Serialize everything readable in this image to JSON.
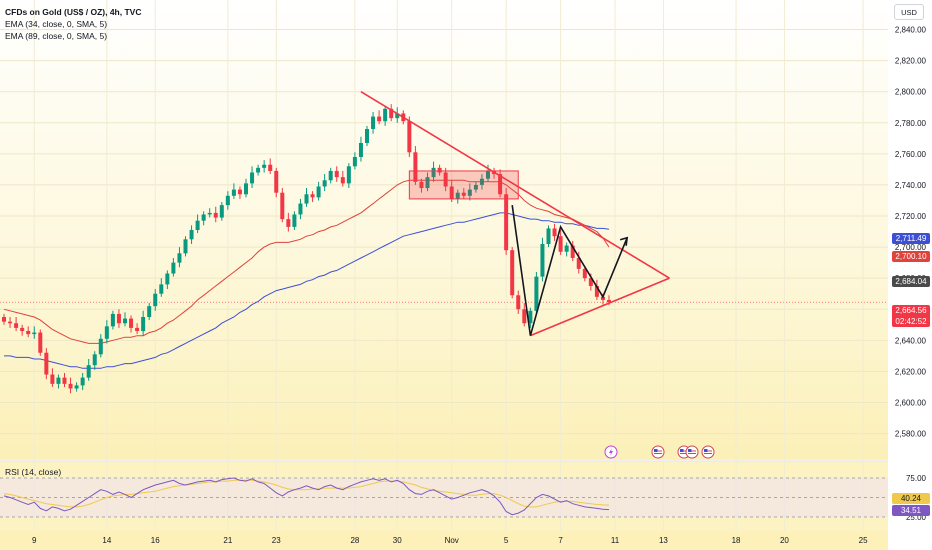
{
  "legend": {
    "title": "CFDs on Gold (US$ / OZ), 4h, TVC",
    "ema1": "EMA (34, close, 0, SMA, 5)",
    "ema2": "EMA (89, close, 0, SMA, 5)",
    "rsi": "RSI (14, close)"
  },
  "currency_button": "USD",
  "badges": {
    "ema89": "2,711.49",
    "ema34": "2,700.10",
    "level": "2,684.04",
    "last_price": "2,664.56",
    "countdown": "02:42:52",
    "rsi_ma": "40.24",
    "rsi": "34.51"
  },
  "colors": {
    "up": "#089981",
    "down": "#f23645",
    "ema34": "#e0423c",
    "ema89": "#3d4fd6",
    "pattern": "#f23645",
    "arrow": "#131722",
    "rsi": "#7e57c2",
    "rsi_ma": "#f0c94c",
    "background_tint": "#fdf4c5"
  },
  "event_icons": [
    "lightning-icon",
    "us-flag-icon",
    "us-flag-icon",
    "us-flag-icon",
    "us-flag-icon"
  ],
  "chart_data": {
    "type": "candlestick",
    "title": "CFDs on Gold (US$ / OZ), 4h, TVC",
    "y_ticks": [
      "2,840.00",
      "2,820.00",
      "2,800.00",
      "2,780.00",
      "2,760.00",
      "2,740.00",
      "2,720.00",
      "2,700.00",
      "2,680.00",
      "2,660.00",
      "2,640.00",
      "2,620.00",
      "2,600.00",
      "2,580.00"
    ],
    "y_tick_values": [
      2840,
      2820,
      2800,
      2780,
      2760,
      2740,
      2720,
      2700,
      2680,
      2660,
      2640,
      2620,
      2600,
      2580
    ],
    "x_ticks": [
      "9",
      "14",
      "16",
      "21",
      "23",
      "28",
      "30",
      "Nov",
      "5",
      "7",
      "11",
      "13",
      "18",
      "20",
      "25"
    ],
    "x_tick_index": [
      5,
      17,
      25,
      37,
      45,
      58,
      65,
      74,
      83,
      92,
      101,
      109,
      121,
      129,
      142
    ],
    "ylim": [
      2572,
      2850
    ],
    "closes": [
      2652,
      2651,
      2648,
      2646,
      2644,
      2645,
      2632,
      2618,
      2612,
      2616,
      2612,
      2609,
      2611,
      2616,
      2624,
      2631,
      2641,
      2649,
      2657,
      2651,
      2654,
      2648,
      2646,
      2655,
      2662,
      2670,
      2676,
      2683,
      2690,
      2696,
      2705,
      2711,
      2717,
      2721,
      2722,
      2719,
      2727,
      2733,
      2737,
      2734,
      2741,
      2748,
      2751,
      2753,
      2749,
      2735,
      2718,
      2713,
      2721,
      2728,
      2734,
      2732,
      2739,
      2743,
      2749,
      2745,
      2741,
      2752,
      2758,
      2767,
      2776,
      2784,
      2781,
      2789,
      2783,
      2786,
      2781,
      2761,
      2742,
      2738,
      2745,
      2751,
      2748,
      2739,
      2731,
      2735,
      2733,
      2737,
      2740,
      2744,
      2749,
      2747,
      2734,
      2698,
      2669,
      2660,
      2651,
      2659,
      2681,
      2702,
      2712,
      2707,
      2697,
      2701,
      2693,
      2686,
      2680,
      2675,
      2668,
      2666,
      2664.56
    ],
    "opens": [
      2655,
      2652,
      2651,
      2648,
      2646,
      2644,
      2645,
      2632,
      2618,
      2612,
      2616,
      2612,
      2609,
      2611,
      2616,
      2624,
      2631,
      2641,
      2649,
      2657,
      2651,
      2654,
      2648,
      2646,
      2655,
      2662,
      2670,
      2676,
      2683,
      2690,
      2696,
      2705,
      2711,
      2717,
      2721,
      2722,
      2719,
      2727,
      2733,
      2737,
      2734,
      2741,
      2748,
      2751,
      2753,
      2749,
      2735,
      2718,
      2713,
      2721,
      2728,
      2734,
      2732,
      2739,
      2743,
      2749,
      2745,
      2741,
      2752,
      2758,
      2767,
      2776,
      2784,
      2781,
      2789,
      2783,
      2786,
      2781,
      2761,
      2742,
      2738,
      2745,
      2751,
      2748,
      2739,
      2731,
      2735,
      2733,
      2737,
      2740,
      2744,
      2749,
      2747,
      2734,
      2698,
      2669,
      2660,
      2651,
      2659,
      2681,
      2702,
      2712,
      2707,
      2697,
      2701,
      2693,
      2686,
      2680,
      2675,
      2668,
      2666
    ],
    "ema34": [
      2660,
      2659,
      2658,
      2657,
      2656,
      2655,
      2653,
      2650,
      2647,
      2645,
      2643,
      2641,
      2640,
      2639,
      2638,
      2638,
      2638,
      2639,
      2640,
      2641,
      2642,
      2642,
      2643,
      2643,
      2645,
      2646,
      2648,
      2651,
      2653,
      2656,
      2659,
      2662,
      2666,
      2669,
      2672,
      2675,
      2678,
      2681,
      2684,
      2687,
      2690,
      2693,
      2697,
      2700,
      2702,
      2703,
      2703,
      2703,
      2704,
      2705,
      2707,
      2708,
      2710,
      2711,
      2713,
      2714,
      2716,
      2718,
      2720,
      2722,
      2725,
      2728,
      2731,
      2734,
      2737,
      2740,
      2742,
      2743,
      2743,
      2743,
      2743,
      2743,
      2743,
      2743,
      2743,
      2743,
      2743,
      2742,
      2742,
      2742,
      2742,
      2742,
      2742,
      2740,
      2737,
      2734,
      2730,
      2727,
      2725,
      2724,
      2723,
      2721,
      2720,
      2719,
      2718,
      2716,
      2714,
      2712,
      2710,
      2706,
      2700
    ],
    "ema89": [
      2630,
      2630,
      2629,
      2629,
      2629,
      2628,
      2628,
      2627,
      2626,
      2625,
      2624,
      2623,
      2623,
      2622,
      2622,
      2622,
      2622,
      2623,
      2623,
      2624,
      2625,
      2625,
      2626,
      2627,
      2628,
      2629,
      2631,
      2632,
      2634,
      2636,
      2638,
      2640,
      2642,
      2644,
      2646,
      2648,
      2651,
      2653,
      2655,
      2658,
      2660,
      2663,
      2665,
      2668,
      2670,
      2672,
      2673,
      2674,
      2675,
      2676,
      2678,
      2679,
      2681,
      2682,
      2684,
      2685,
      2687,
      2689,
      2691,
      2693,
      2695,
      2697,
      2699,
      2701,
      2703,
      2705,
      2707,
      2708,
      2709,
      2710,
      2711,
      2712,
      2713,
      2714,
      2715,
      2716,
      2716,
      2717,
      2718,
      2719,
      2720,
      2721,
      2722,
      2722,
      2721,
      2720,
      2719,
      2718,
      2718,
      2717,
      2717,
      2716,
      2716,
      2715,
      2715,
      2714,
      2714,
      2713,
      2712,
      2712,
      2711.49
    ],
    "rsi_values": [
      52,
      50,
      47,
      44,
      41,
      44,
      36,
      33,
      38,
      36,
      33,
      35,
      40,
      45,
      50,
      55,
      60,
      58,
      54,
      57,
      54,
      50,
      55,
      60,
      63,
      66,
      68,
      70,
      72,
      68,
      66,
      68,
      70,
      71,
      72,
      70,
      73,
      74,
      75,
      72,
      71,
      74,
      70,
      68,
      62,
      56,
      52,
      57,
      60,
      62,
      65,
      62,
      60,
      64,
      66,
      62,
      60,
      64,
      67,
      70,
      72,
      74,
      72,
      74,
      70,
      72,
      68,
      60,
      55,
      54,
      58,
      60,
      56,
      52,
      48,
      50,
      53,
      56,
      58,
      60,
      57,
      52,
      44,
      32,
      28,
      30,
      34,
      42,
      50,
      54,
      52,
      48,
      44,
      46,
      42,
      40,
      38,
      37,
      36,
      35,
      34.51
    ],
    "rsi_ma_values": [
      55,
      54,
      52,
      50,
      48,
      46,
      44,
      42,
      41,
      40,
      39,
      38,
      38,
      39,
      41,
      44,
      47,
      50,
      52,
      53,
      54,
      54,
      55,
      56,
      57,
      58,
      60,
      62,
      64,
      65,
      66,
      67,
      68,
      69,
      70,
      70,
      71,
      71,
      72,
      72,
      72,
      72,
      71,
      70,
      68,
      66,
      63,
      61,
      60,
      60,
      60,
      61,
      61,
      62,
      62,
      62,
      62,
      62,
      63,
      64,
      66,
      68,
      70,
      71,
      71,
      71,
      70,
      68,
      66,
      63,
      61,
      59,
      58,
      57,
      56,
      55,
      54,
      53,
      53,
      54,
      55,
      55,
      53,
      50,
      46,
      42,
      39,
      38,
      38,
      40,
      42,
      44,
      45,
      45,
      45,
      44,
      43,
      42,
      41,
      40.5,
      40.24
    ],
    "rsi_levels": [
      75,
      50,
      25
    ],
    "rsi_ticks": [
      "75.00",
      "25.00"
    ],
    "annotations": {
      "consolidation_box": {
        "from_index": 67,
        "to_index": 85,
        "high": 2749,
        "low": 2731
      },
      "triangle": {
        "upper": [
          [
            59,
            2800
          ],
          [
            110,
            2680
          ]
        ],
        "lower": [
          [
            87,
            2643
          ],
          [
            110,
            2680
          ]
        ]
      },
      "swing_path": [
        [
          84,
          2727
        ],
        [
          87,
          2643
        ],
        [
          92,
          2713
        ],
        [
          99,
          2668
        ],
        [
          103,
          2706
        ]
      ]
    }
  }
}
